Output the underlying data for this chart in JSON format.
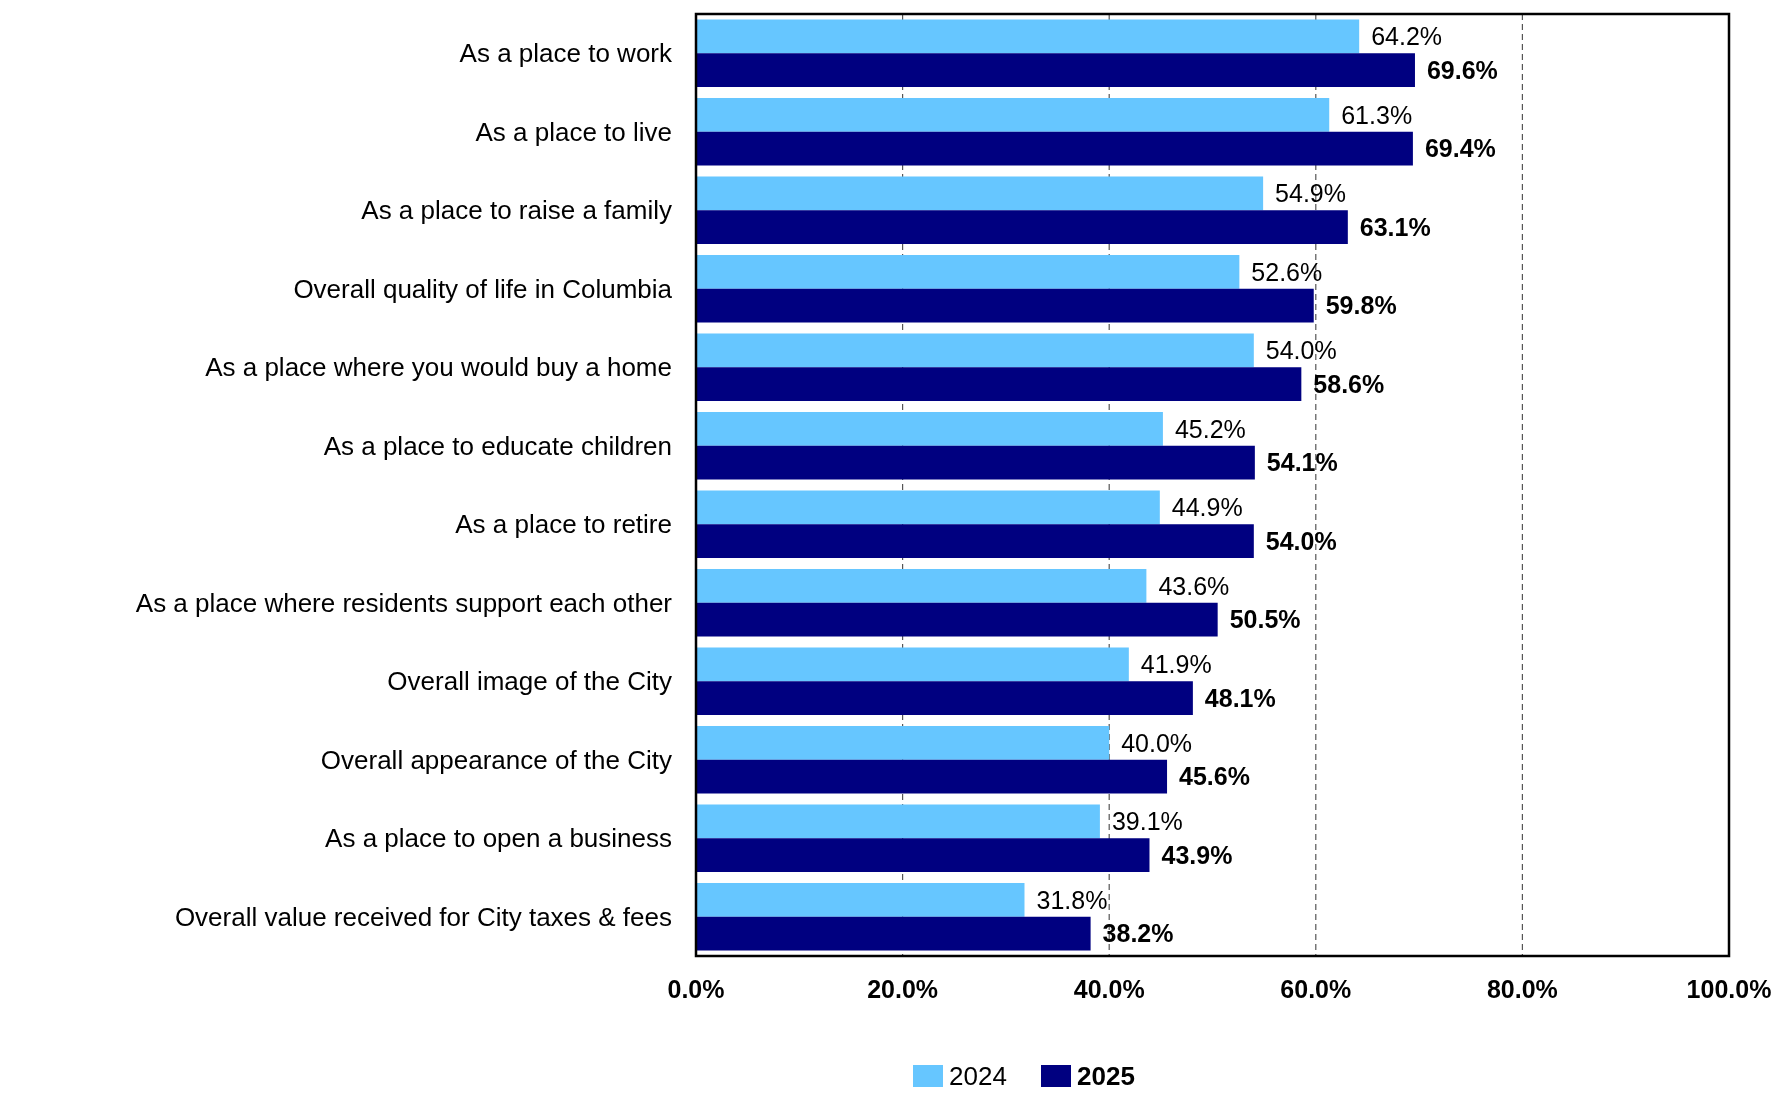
{
  "chart_data": {
    "type": "bar",
    "orientation": "horizontal",
    "categories": [
      "As a place to work",
      "As a place to live",
      "As a place to raise a family",
      "Overall quality of life in Columbia",
      "As a place where you would buy a home",
      "As a place to educate children",
      "As a place to retire",
      "As a place where residents support each other",
      "Overall image of the City",
      "Overall appearance of the City",
      "As a place to open a business",
      "Overall value received for City taxes & fees"
    ],
    "series": [
      {
        "name": "2024",
        "color": "#66c6ff",
        "values": [
          64.2,
          61.3,
          54.9,
          52.6,
          54.0,
          45.2,
          44.9,
          43.6,
          41.9,
          40.0,
          39.1,
          31.8
        ],
        "value_labels": [
          "64.2%",
          "61.3%",
          "54.9%",
          "52.6%",
          "54.0%",
          "45.2%",
          "44.9%",
          "43.6%",
          "41.9%",
          "40.0%",
          "39.1%",
          "31.8%"
        ]
      },
      {
        "name": "2025",
        "color": "#000080",
        "values": [
          69.6,
          69.4,
          63.1,
          59.8,
          58.6,
          54.1,
          54.0,
          50.5,
          48.1,
          45.6,
          43.9,
          38.2
        ],
        "value_labels": [
          "69.6%",
          "69.4%",
          "63.1%",
          "59.8%",
          "58.6%",
          "54.1%",
          "54.0%",
          "50.5%",
          "48.1%",
          "45.6%",
          "43.9%",
          "38.2%"
        ]
      }
    ],
    "xlim": [
      0,
      100
    ],
    "xticks": [
      {
        "value": 0,
        "label": "0.0%"
      },
      {
        "value": 20,
        "label": "20.0%"
      },
      {
        "value": 40,
        "label": "40.0%"
      },
      {
        "value": 60,
        "label": "60.0%"
      },
      {
        "value": 80,
        "label": "80.0%"
      },
      {
        "value": 100,
        "label": "100.0%"
      }
    ],
    "grid": "x",
    "legend": "bottom"
  }
}
